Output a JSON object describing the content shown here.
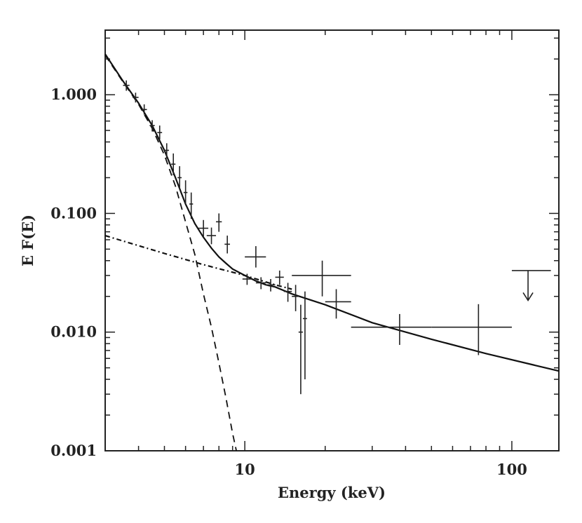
{
  "chart_data": {
    "type": "scatter",
    "xlabel": "Energy (keV)",
    "ylabel": "E F(E)",
    "x_scale": "log",
    "y_scale": "log",
    "xlim": [
      3,
      150
    ],
    "ylim": [
      0.001,
      3.5
    ],
    "x_ticks": [
      {
        "value": 10,
        "label": "10"
      },
      {
        "value": 100,
        "label": "100"
      }
    ],
    "y_ticks": [
      {
        "value": 1.0,
        "label": "1.000"
      },
      {
        "value": 0.1,
        "label": "0.100"
      },
      {
        "value": 0.01,
        "label": "0.010"
      },
      {
        "value": 0.001,
        "label": "0.001"
      }
    ],
    "grid": false,
    "series": [
      {
        "style": "solid",
        "x": [
          3.0,
          3.5,
          4.0,
          4.5,
          5.0,
          5.5,
          6.0,
          6.5,
          7.0,
          7.5,
          8.0,
          8.5,
          9.0,
          10.0,
          11.0,
          12.0,
          13.0,
          15.0,
          20.0,
          30.0,
          50.0,
          80.0,
          150.0
        ],
        "y": [
          2.2,
          1.3,
          0.85,
          0.55,
          0.34,
          0.2,
          0.12,
          0.082,
          0.063,
          0.051,
          0.043,
          0.038,
          0.034,
          0.03,
          0.027,
          0.025,
          0.024,
          0.021,
          0.017,
          0.012,
          0.0087,
          0.0066,
          0.0047
        ]
      },
      {
        "style": "dashed",
        "x": [
          3.0,
          3.5,
          4.0,
          4.5,
          5.0,
          5.5,
          6.0,
          6.5,
          7.0,
          7.5,
          8.0,
          8.5,
          9.0,
          9.3
        ],
        "y": [
          2.15,
          1.28,
          0.83,
          0.52,
          0.31,
          0.17,
          0.085,
          0.045,
          0.021,
          0.011,
          0.0055,
          0.0028,
          0.0014,
          0.001
        ]
      },
      {
        "style": "dash-dot",
        "x": [
          3.0,
          5.0,
          7.0,
          10.0,
          13.0,
          15.0
        ],
        "y": [
          0.065,
          0.046,
          0.037,
          0.03,
          0.025,
          0.023
        ]
      }
    ],
    "points": [
      {
        "x": 3.6,
        "y": 1.2,
        "xerr": [
          3.5,
          3.7
        ],
        "yerr": [
          1.08,
          1.32
        ]
      },
      {
        "x": 3.9,
        "y": 0.95,
        "xerr": [
          3.8,
          4.0
        ],
        "yerr": [
          0.86,
          1.04
        ]
      },
      {
        "x": 4.2,
        "y": 0.75,
        "xerr": [
          4.1,
          4.3
        ],
        "yerr": [
          0.68,
          0.83
        ]
      },
      {
        "x": 4.5,
        "y": 0.55,
        "xerr": [
          4.4,
          4.6
        ],
        "yerr": [
          0.49,
          0.61
        ]
      },
      {
        "x": 4.8,
        "y": 0.48,
        "xerr": [
          4.7,
          4.9
        ],
        "yerr": [
          0.42,
          0.55
        ]
      },
      {
        "x": 5.1,
        "y": 0.34,
        "xerr": [
          5.0,
          5.2
        ],
        "yerr": [
          0.29,
          0.39
        ]
      },
      {
        "x": 5.4,
        "y": 0.26,
        "xerr": [
          5.3,
          5.5
        ],
        "yerr": [
          0.21,
          0.32
        ]
      },
      {
        "x": 5.7,
        "y": 0.2,
        "xerr": [
          5.6,
          5.8
        ],
        "yerr": [
          0.16,
          0.25
        ]
      },
      {
        "x": 6.0,
        "y": 0.15,
        "xerr": [
          5.9,
          6.1
        ],
        "yerr": [
          0.12,
          0.19
        ]
      },
      {
        "x": 6.3,
        "y": 0.12,
        "xerr": [
          6.2,
          6.4
        ],
        "yerr": [
          0.09,
          0.15
        ]
      },
      {
        "x": 7.0,
        "y": 0.075,
        "xerr": [
          6.7,
          7.3
        ],
        "yerr": [
          0.063,
          0.088
        ]
      },
      {
        "x": 7.5,
        "y": 0.065,
        "xerr": [
          7.2,
          7.8
        ],
        "yerr": [
          0.055,
          0.076
        ]
      },
      {
        "x": 8.0,
        "y": 0.085,
        "xerr": [
          7.8,
          8.2
        ],
        "yerr": [
          0.07,
          0.1
        ]
      },
      {
        "x": 8.6,
        "y": 0.055,
        "xerr": [
          8.4,
          8.8
        ],
        "yerr": [
          0.046,
          0.065
        ]
      },
      {
        "x": 11.0,
        "y": 0.043,
        "xerr": [
          10.0,
          12.0
        ],
        "yerr": [
          0.035,
          0.053
        ]
      },
      {
        "x": 10.2,
        "y": 0.028,
        "xerr": [
          9.8,
          10.6
        ],
        "yerr": [
          0.025,
          0.031
        ]
      },
      {
        "x": 11.5,
        "y": 0.026,
        "xerr": [
          11.0,
          12.0
        ],
        "yerr": [
          0.023,
          0.029
        ]
      },
      {
        "x": 12.5,
        "y": 0.025,
        "xerr": [
          12.0,
          13.0
        ],
        "yerr": [
          0.022,
          0.028
        ]
      },
      {
        "x": 13.5,
        "y": 0.029,
        "xerr": [
          13.0,
          14.0
        ],
        "yerr": [
          0.025,
          0.033
        ]
      },
      {
        "x": 14.5,
        "y": 0.022,
        "xerr": [
          14.0,
          15.0
        ],
        "yerr": [
          0.018,
          0.026
        ]
      },
      {
        "x": 15.5,
        "y": 0.02,
        "xerr": [
          15.0,
          16.0
        ],
        "yerr": [
          0.015,
          0.025
        ]
      },
      {
        "x": 16.2,
        "y": 0.01,
        "xerr": [
          15.9,
          16.5
        ],
        "yerr": [
          0.003,
          0.017
        ]
      },
      {
        "x": 16.8,
        "y": 0.013,
        "xerr": [
          16.5,
          17.1
        ],
        "yerr": [
          0.004,
          0.022
        ]
      },
      {
        "x": 19.5,
        "y": 0.03,
        "xerr": [
          15.0,
          25.0
        ],
        "yerr": [
          0.02,
          0.04
        ]
      },
      {
        "x": 22.0,
        "y": 0.018,
        "xerr": [
          20.0,
          25.0
        ],
        "yerr": [
          0.013,
          0.023
        ]
      },
      {
        "x": 38.0,
        "y": 0.011,
        "xerr": [
          25.0,
          50.0
        ],
        "yerr": [
          0.0078,
          0.0142
        ]
      },
      {
        "x": 75.0,
        "y": 0.011,
        "xerr": [
          50.0,
          100.0
        ],
        "yerr": [
          0.0064,
          0.0172
        ]
      }
    ],
    "upper_limits": [
      {
        "x": 115.0,
        "xerr": [
          100.0,
          140.0
        ],
        "y": 0.033,
        "arrow_to": 0.0185
      }
    ]
  }
}
